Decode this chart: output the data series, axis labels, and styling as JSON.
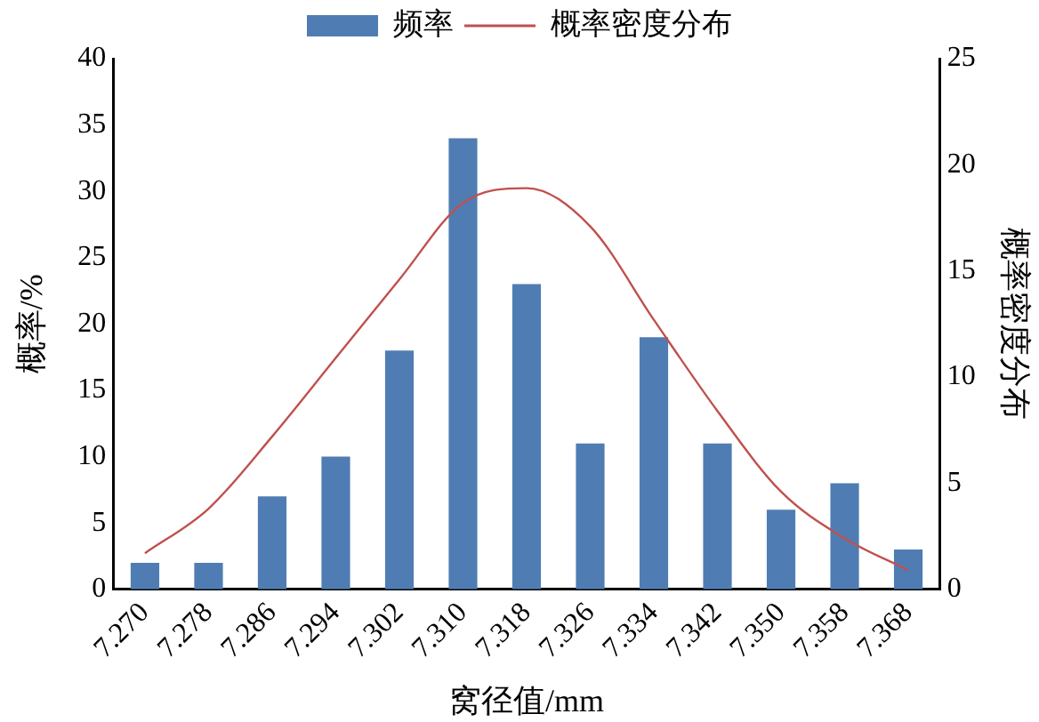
{
  "chart_data": {
    "type": "bar",
    "xlabel": "窝径值/mm",
    "ylabel": "概率/%",
    "y2label": "概率密度分布",
    "categories": [
      "7.270",
      "7.278",
      "7.286",
      "7.294",
      "7.302",
      "7.310",
      "7.318",
      "7.326",
      "7.334",
      "7.342",
      "7.350",
      "7.358",
      "7.368"
    ],
    "series": [
      {
        "name": "频率",
        "color": "#4f7db3",
        "values": [
          2,
          2,
          7,
          10,
          18,
          34,
          23,
          11,
          19,
          11,
          6,
          8,
          3
        ]
      },
      {
        "name": "概率密度分布",
        "type": "line",
        "axis": "y2",
        "color": "#c0504d",
        "values": [
          1.7,
          3.8,
          7.2,
          10.9,
          14.6,
          18.2,
          18.9,
          17.1,
          12.7,
          8.4,
          4.6,
          2.4,
          0.9
        ]
      }
    ],
    "ylim": [
      0,
      40
    ],
    "yticks": [
      0,
      5,
      10,
      15,
      20,
      25,
      30,
      35,
      40
    ],
    "y2lim": [
      0,
      25
    ],
    "y2ticks": [
      0,
      5,
      10,
      15,
      20,
      25
    ],
    "grid": false,
    "legend": "top",
    "marker": "none",
    "line_style": "solid"
  }
}
